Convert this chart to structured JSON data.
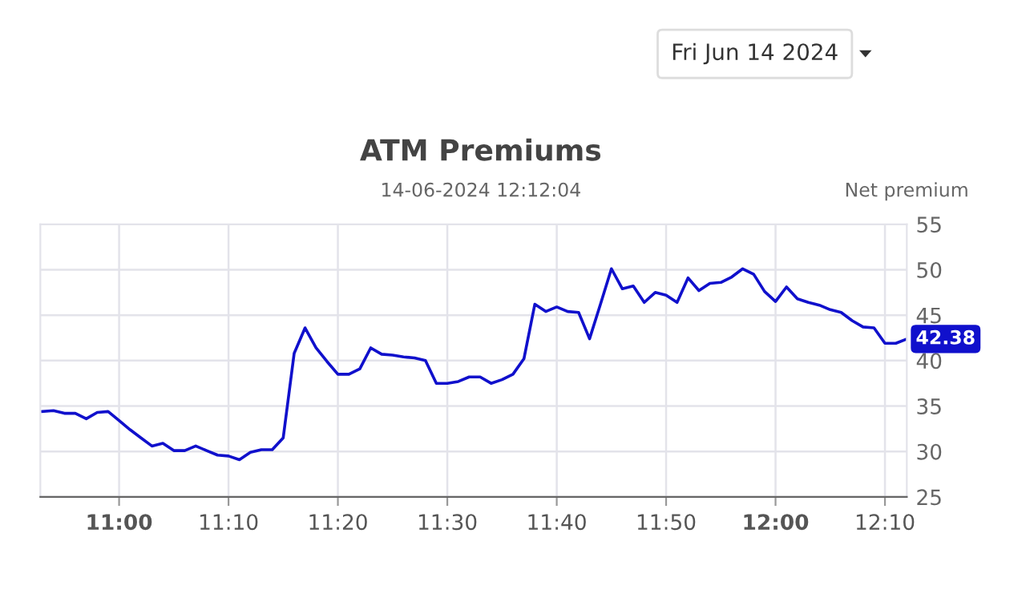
{
  "chart_data": {
    "type": "line",
    "title": "ATM Premiums",
    "subtitle": "14-06-2024 12:12:04",
    "ylabel": "Net premium",
    "annotations": [
      "Fri Jun 14 2024"
    ],
    "x": [
      10.8833,
      10.9,
      10.9167,
      10.9333,
      10.95,
      10.9667,
      10.9833,
      11.0,
      11.0167,
      11.0333,
      11.05,
      11.0667,
      11.0833,
      11.1,
      11.1167,
      11.1333,
      11.15,
      11.1667,
      11.1833,
      11.2,
      11.2167,
      11.2333,
      11.25,
      11.2667,
      11.2833,
      11.3,
      11.3167,
      11.3333,
      11.35,
      11.3667,
      11.3833,
      11.4,
      11.4167,
      11.4333,
      11.45,
      11.4667,
      11.4833,
      11.5,
      11.5167,
      11.5333,
      11.55,
      11.5667,
      11.5833,
      11.6,
      11.6167,
      11.6333,
      11.65,
      11.6667,
      11.6833,
      11.7,
      11.7167,
      11.7333,
      11.75,
      11.7667,
      11.7833,
      11.8,
      11.8167,
      11.8333,
      11.85,
      11.8667,
      11.8833,
      11.9,
      11.9167,
      11.9333,
      11.95,
      11.9667,
      11.9833,
      12.0,
      12.0167,
      12.0333,
      12.05,
      12.0667,
      12.0833,
      12.1,
      12.1167,
      12.1333,
      12.15,
      12.1667,
      12.1833,
      12.2
    ],
    "series": [
      {
        "color": "#1010cc",
        "values": [
          34.4,
          34.5,
          34.2,
          34.2,
          33.6,
          34.3,
          34.4,
          33.4,
          32.4,
          31.5,
          30.6,
          30.9,
          30.1,
          30.1,
          30.6,
          30.1,
          29.6,
          29.5,
          29.1,
          29.9,
          30.2,
          30.2,
          31.5,
          40.8,
          43.6,
          41.4,
          39.9,
          38.5,
          38.5,
          39.1,
          41.4,
          40.7,
          40.6,
          40.4,
          40.3,
          40.0,
          37.5,
          37.5,
          37.7,
          38.2,
          38.2,
          37.5,
          37.9,
          38.5,
          40.2,
          46.2,
          45.4,
          45.9,
          45.4,
          45.3,
          42.4,
          46.2,
          50.1,
          47.9,
          48.2,
          46.4,
          47.5,
          47.2,
          46.4,
          49.1,
          47.7,
          48.5,
          48.6,
          49.2,
          50.1,
          49.5,
          47.6,
          46.5,
          48.1,
          46.8,
          46.4,
          46.1,
          45.6,
          45.3,
          44.4,
          43.7,
          43.6,
          41.9,
          41.9,
          42.38
        ],
        "value_labels": [
          null,
          null,
          null,
          null,
          null,
          null,
          null,
          null,
          null,
          null,
          null,
          null,
          null,
          null,
          null,
          null,
          null,
          null,
          null,
          null,
          null,
          null,
          null,
          null,
          null,
          null,
          null,
          null,
          null,
          null,
          null,
          null,
          null,
          null,
          null,
          null,
          null,
          null,
          null,
          null,
          null,
          null,
          null,
          null,
          null,
          null,
          null,
          null,
          null,
          null,
          null,
          null,
          null,
          null,
          null,
          null,
          null,
          null,
          null,
          null,
          null,
          null,
          null,
          null,
          null,
          null,
          null,
          null,
          null,
          null,
          null,
          null,
          null,
          null,
          null,
          null,
          null,
          null,
          null,
          "42.38"
        ]
      }
    ],
    "xlim": [
      10.88,
      12.2
    ],
    "ylim": [
      25,
      55
    ],
    "xticks": [
      {
        "value": 11,
        "label": "11:00"
      },
      {
        "value": 11.1667,
        "label": "11:10"
      },
      {
        "value": 11.3333,
        "label": "11:20"
      },
      {
        "value": 11.5,
        "label": "11:30"
      },
      {
        "value": 11.6667,
        "label": "11:40"
      },
      {
        "value": 11.8333,
        "label": "11:50"
      },
      {
        "value": 12,
        "label": "12:00"
      },
      {
        "value": 12.1667,
        "label": "12:10"
      }
    ],
    "yticks": [
      25,
      30,
      35,
      40,
      45,
      50,
      55
    ],
    "grid": true,
    "legend": false,
    "marker": "none",
    "line_style": "solid"
  }
}
